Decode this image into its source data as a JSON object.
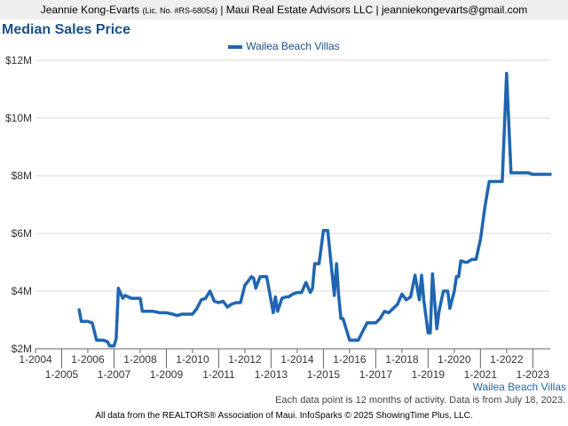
{
  "header": {
    "name": "Jeannie Kong-Evarts",
    "license": "(Lic. No. #RS-68054)",
    "rest": "| Maui Real Estate Advisors LLC | jeanniekongevarts@gmail.com"
  },
  "title": "Median Sales Price",
  "legend_label": "Wailea Beach Villas",
  "corner_label": "Wailea Beach Villas",
  "note": "Each data point is 12 months of activity. Data is from July 18, 2023.",
  "footer": "All data from the REALTORS® Association of Maui. InfoSparks © 2025 ShowingTime Plus, LLC.",
  "colors": {
    "series": "#1f66b1",
    "title": "#1c4f86",
    "grid": "#d9d9d9",
    "axis": "#666666"
  },
  "chart_data": {
    "type": "line",
    "title": "Median Sales Price",
    "xlabel": "",
    "ylabel": "",
    "xlim": [
      "2004-01",
      "2023-09"
    ],
    "ylim": [
      2000000,
      12000000
    ],
    "yticks": [
      2000000,
      4000000,
      6000000,
      8000000,
      10000000,
      12000000
    ],
    "ytick_labels": [
      "$2M",
      "$4M",
      "$6M",
      "$8M",
      "$10M",
      "$12M"
    ],
    "xticks_upper": [
      "2004-01",
      "2006-01",
      "2008-01",
      "2010-01",
      "2012-01",
      "2014-01",
      "2016-01",
      "2018-01",
      "2020-01",
      "2022-01"
    ],
    "xtick_labels_upper": [
      "1-2004",
      "1-2006",
      "1-2008",
      "1-2010",
      "1-2012",
      "1-2014",
      "1-2016",
      "1-2018",
      "1-2020",
      "1-2022"
    ],
    "xticks_lower": [
      "2005-01",
      "2007-01",
      "2009-01",
      "2011-01",
      "2013-01",
      "2015-01",
      "2017-01",
      "2019-01",
      "2021-01",
      "2023-01"
    ],
    "xtick_labels_lower": [
      "1-2005",
      "1-2007",
      "1-2009",
      "1-2011",
      "1-2013",
      "1-2015",
      "1-2017",
      "1-2019",
      "1-2021",
      "1-2023"
    ],
    "grid": true,
    "legend_position": "top-center",
    "series": [
      {
        "name": "Wailea Beach Villas",
        "x": [
          "2005-09",
          "2005-10",
          "2006-01",
          "2006-03",
          "2006-05",
          "2006-08",
          "2006-10",
          "2006-11",
          "2007-01",
          "2007-02",
          "2007-03",
          "2007-05",
          "2007-06",
          "2007-09",
          "2007-10",
          "2008-01",
          "2008-02",
          "2008-04",
          "2008-07",
          "2008-10",
          "2009-01",
          "2009-04",
          "2009-06",
          "2009-08",
          "2009-10",
          "2010-01",
          "2010-03",
          "2010-05",
          "2010-07",
          "2010-09",
          "2010-11",
          "2011-01",
          "2011-03",
          "2011-05",
          "2011-07",
          "2011-09",
          "2011-11",
          "2012-01",
          "2012-02",
          "2012-04",
          "2012-05",
          "2012-06",
          "2012-08",
          "2012-10",
          "2012-11",
          "2013-02",
          "2013-03",
          "2013-04",
          "2013-06",
          "2013-08",
          "2013-09",
          "2013-11",
          "2014-01",
          "2014-03",
          "2014-05",
          "2014-07",
          "2014-08",
          "2014-09",
          "2014-11",
          "2015-01",
          "2015-03",
          "2015-06",
          "2015-07",
          "2015-08",
          "2015-09",
          "2015-10",
          "2016-01",
          "2016-03",
          "2016-05",
          "2016-07",
          "2016-09",
          "2016-11",
          "2017-01",
          "2017-03",
          "2017-05",
          "2017-07",
          "2017-09",
          "2017-11",
          "2018-01",
          "2018-03",
          "2018-05",
          "2018-07",
          "2018-09",
          "2018-10",
          "2018-11",
          "2019-01",
          "2019-02",
          "2019-03",
          "2019-05",
          "2019-06",
          "2019-08",
          "2019-10",
          "2019-11",
          "2020-01",
          "2020-02",
          "2020-03",
          "2020-04",
          "2020-06",
          "2020-07",
          "2020-09",
          "2020-11",
          "2021-01",
          "2021-03",
          "2021-05",
          "2021-07",
          "2021-09",
          "2021-11",
          "2022-01",
          "2022-03",
          "2022-05",
          "2022-06",
          "2022-08",
          "2022-09",
          "2022-11",
          "2023-01",
          "2023-02",
          "2023-03",
          "2023-04",
          "2023-05",
          "2023-06",
          "2023-07",
          "2023-08",
          "2023-09"
        ],
        "y": [
          3350000,
          2950000,
          2950000,
          2900000,
          2300000,
          2300000,
          2250000,
          2100000,
          2100000,
          2350000,
          4100000,
          3750000,
          3850000,
          3750000,
          3750000,
          3750000,
          3300000,
          3300000,
          3300000,
          3250000,
          3250000,
          3200000,
          3150000,
          3200000,
          3200000,
          3200000,
          3400000,
          3700000,
          3750000,
          4000000,
          3650000,
          3600000,
          3650000,
          3450000,
          3550000,
          3600000,
          3600000,
          4200000,
          4300000,
          4500000,
          4450000,
          4100000,
          4500000,
          4500000,
          4500000,
          3250000,
          3800000,
          3300000,
          3750000,
          3800000,
          3800000,
          3900000,
          3950000,
          3950000,
          4300000,
          3950000,
          4100000,
          4950000,
          4950000,
          6100000,
          6100000,
          3850000,
          4950000,
          3850000,
          3050000,
          3050000,
          2300000,
          2300000,
          2300000,
          2600000,
          2900000,
          2900000,
          2900000,
          3050000,
          3300000,
          3250000,
          3400000,
          3550000,
          3900000,
          3700000,
          3800000,
          4550000,
          3700000,
          4550000,
          3700000,
          2550000,
          2550000,
          4600000,
          2700000,
          3300000,
          4000000,
          4000000,
          3400000,
          4000000,
          4500000,
          4500000,
          5050000,
          5000000,
          5000000,
          5100000,
          5100000,
          5800000,
          6900000,
          7800000,
          7800000,
          7800000,
          7800000,
          11550000,
          8100000,
          8100000,
          8100000,
          8100000,
          8100000,
          8100000,
          8050000,
          8050000,
          8050000,
          8050000,
          8050000,
          8050000,
          8050000,
          8050000,
          8050000
        ]
      }
    ]
  }
}
